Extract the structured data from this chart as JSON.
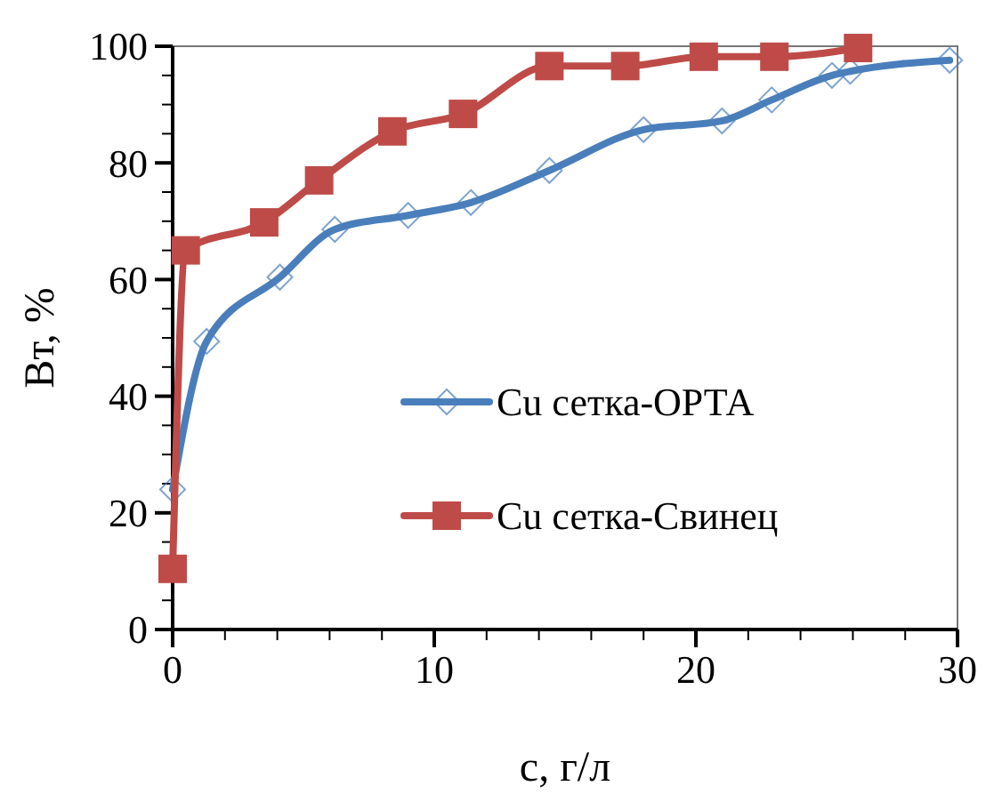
{
  "chart_data": {
    "type": "line",
    "xlabel": "c, г/л",
    "ylabel": "Вт, %",
    "xlim": [
      0,
      30
    ],
    "ylim": [
      0,
      100
    ],
    "xticks": [
      0,
      {
        "value": 2,
        "label": null
      },
      {
        "value": 4,
        "label": null
      },
      {
        "value": 6,
        "label": null
      },
      {
        "value": 8,
        "label": null
      },
      10,
      {
        "value": 12,
        "label": null
      },
      {
        "value": 14,
        "label": null
      },
      {
        "value": 16,
        "label": null
      },
      {
        "value": 18,
        "label": null
      },
      20,
      {
        "value": 22,
        "label": null
      },
      {
        "value": 24,
        "label": null
      },
      {
        "value": 26,
        "label": null
      },
      {
        "value": 28,
        "label": null
      },
      30
    ],
    "yticks": [
      0,
      {
        "value": 5,
        "label": null
      },
      {
        "value": 10,
        "label": null
      },
      {
        "value": 15,
        "label": null
      },
      20,
      {
        "value": 25,
        "label": null
      },
      {
        "value": 30,
        "label": null
      },
      {
        "value": 35,
        "label": null
      },
      40,
      {
        "value": 45,
        "label": null
      },
      {
        "value": 50,
        "label": null
      },
      {
        "value": 55,
        "label": null
      },
      60,
      {
        "value": 65,
        "label": null
      },
      {
        "value": 70,
        "label": null
      },
      {
        "value": 75,
        "label": null
      },
      80,
      {
        "value": 85,
        "label": null
      },
      {
        "value": 90,
        "label": null
      },
      {
        "value": 95,
        "label": null
      },
      100
    ],
    "grid": false,
    "legend": "right",
    "line_style": "solid",
    "series": [
      {
        "name": "Cu сетка-ОРТА",
        "color": "#4a7ebb",
        "marker": "diamond",
        "x": [
          0,
          1.3,
          4.1,
          6.2,
          9.0,
          11.4,
          14.4,
          18.0,
          21.0,
          22.9,
          25.2,
          25.9,
          29.7
        ],
        "values": [
          24,
          49.4,
          60.4,
          68.6,
          71,
          73.2,
          78.7,
          85.7,
          87.2,
          90.8,
          95,
          95.7,
          97.6
        ]
      },
      {
        "name": "Cu сетка-Свинец",
        "color": "#be4b48",
        "marker": "square",
        "x": [
          0,
          0.5,
          3.5,
          5.6,
          8.4,
          11.1,
          14.4,
          17.3,
          20.3,
          23.0,
          26.2
        ],
        "values": [
          10.4,
          65,
          69.8,
          77,
          85.4,
          88.4,
          96.6,
          96.6,
          98.2,
          98.2,
          99.7
        ]
      }
    ]
  }
}
